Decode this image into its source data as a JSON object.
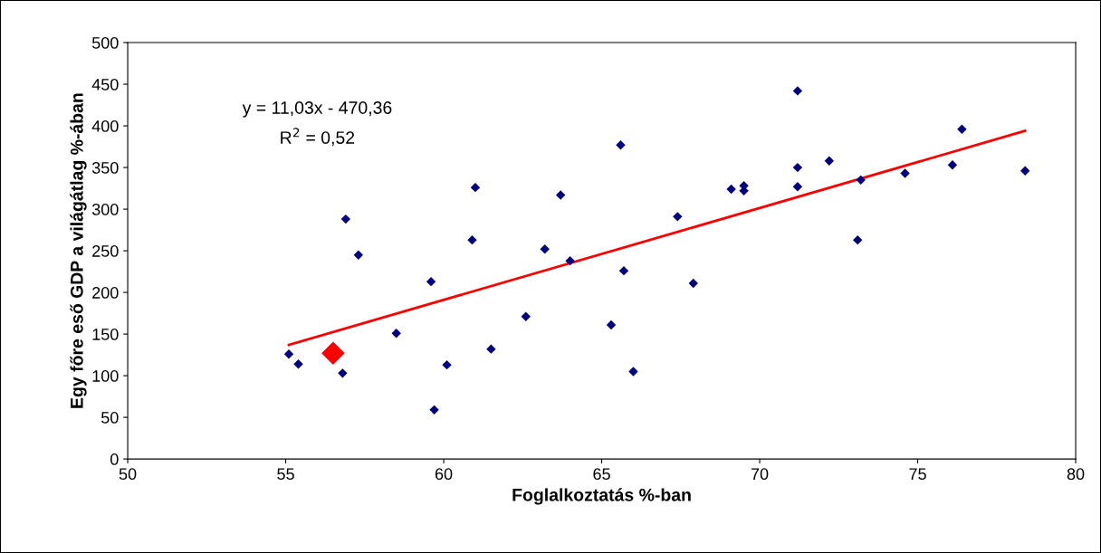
{
  "chart_data": {
    "type": "scatter",
    "xlabel": "Foglalkoztatás %-ban",
    "ylabel": "Egy főre eső GDP a világátlag %-ában",
    "xlim": [
      50,
      80
    ],
    "xticks": [
      50,
      55,
      60,
      65,
      70,
      75,
      80
    ],
    "ylim": [
      0,
      500
    ],
    "yticks": [
      0,
      50,
      100,
      150,
      200,
      250,
      300,
      350,
      400,
      450,
      500
    ],
    "grid": false,
    "legend": false,
    "marker": "diamond",
    "annotations": [
      "y = 11,03x - 470,36",
      "R$^{2}$ = 0,52"
    ],
    "series": [
      {
        "color": "#000080",
        "x": [
          55.1,
          55.4,
          56.8,
          56.9,
          57.3,
          58.5,
          59.6,
          59.7,
          60.1,
          60.9,
          61.0,
          61.5,
          62.6,
          63.2,
          63.7,
          64.0,
          65.3,
          65.6,
          65.7,
          66.0,
          67.4,
          67.9,
          69.1,
          69.5,
          69.5,
          71.2,
          71.2,
          71.2,
          72.2,
          73.2,
          73.1,
          74.6,
          76.1,
          76.4,
          78.4
        ],
        "values": [
          126,
          114,
          103,
          288,
          245,
          151,
          213,
          59,
          113,
          263,
          326,
          132,
          171,
          252,
          317,
          238,
          161,
          377,
          226,
          105,
          291,
          211,
          324,
          328,
          322,
          442,
          350,
          327,
          358,
          335,
          263,
          343,
          353,
          396,
          346
        ]
      },
      {
        "color": "#ff0000",
        "x": [
          56.5
        ],
        "values": [
          127
        ]
      },
      {
        "type": "line",
        "marker": "none",
        "color": "#ff0000",
        "x": [
          55.1,
          78.4
        ],
        "values": [
          137,
          394
        ]
      }
    ]
  }
}
